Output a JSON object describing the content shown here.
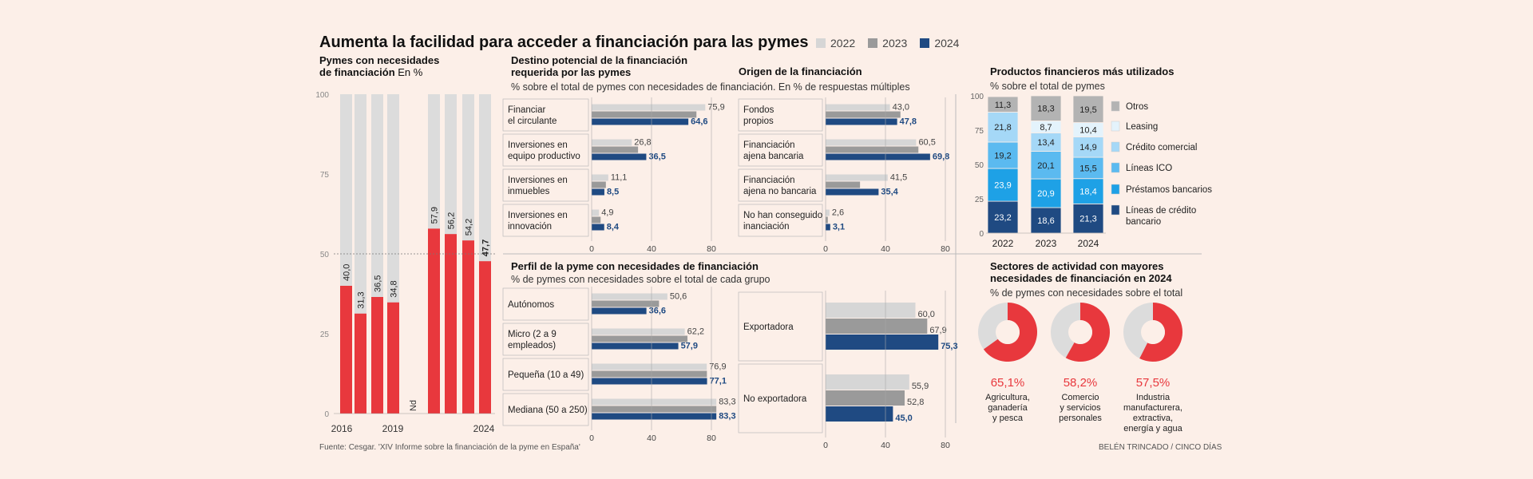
{
  "title": "Aumenta la facilidad para acceder a financiación para las pymes",
  "legend": [
    {
      "label": "2022",
      "color": "#d6d6d6"
    },
    {
      "label": "2023",
      "color": "#9a9a9a"
    },
    {
      "label": "2024",
      "color": "#1f4a82"
    }
  ],
  "colors": {
    "red": "#e8383d",
    "gray_bg": "#dcdcdc",
    "c2022": "#d6d6d6",
    "c2023": "#9a9a9a",
    "c2024": "#1f4a82"
  },
  "source": "Fuente: Cesgar. 'XIV Informe sobre la financiación de la pyme en España'",
  "credit": "BELÉN TRINCADO / CINCO DÍAS",
  "chart_data": [
    {
      "id": "pymes",
      "type": "bar",
      "title": "Pymes con necesidades",
      "title2": "de financiación",
      "unit": "En %",
      "ylim": [
        0,
        100
      ],
      "yticks": [
        "0",
        "25",
        "50",
        "75",
        "100"
      ],
      "categories": [
        "2016",
        "2017",
        "2018",
        "2019",
        "2020",
        "2021",
        "2022",
        "2023",
        "2024"
      ],
      "values": [
        40.0,
        31.3,
        36.5,
        34.8,
        null,
        57.9,
        56.2,
        54.2,
        47.7
      ],
      "labels": [
        "40,0",
        "31,3",
        "36,5",
        "34,8",
        "",
        "57,9",
        "56,2",
        "54,2",
        "47,7"
      ],
      "nd_label": "Nd",
      "xlabels": [
        "2016",
        "2019",
        "2024"
      ]
    },
    {
      "id": "destino",
      "type": "bar",
      "title": "Destino potencial de la financiación",
      "title2": "requerida por las pymes",
      "subtitle": "% sobre el total de pymes con necesidades de financiación. En % de respuestas múltiples",
      "xlim": [
        0,
        80
      ],
      "xticks": [
        "0",
        "40",
        "80"
      ],
      "rows": [
        {
          "label": [
            "Financiar",
            "el circulante"
          ],
          "values": [
            75.9,
            70.0,
            64.6
          ],
          "labels": [
            "75,9",
            "",
            "64,6"
          ]
        },
        {
          "label": [
            "Inversiones en",
            "equipo productivo"
          ],
          "values": [
            26.8,
            31.0,
            36.5
          ],
          "labels": [
            "26,8",
            "",
            "36,5"
          ]
        },
        {
          "label": [
            "Inversiones en",
            "inmuebles"
          ],
          "values": [
            11.1,
            9.5,
            8.5
          ],
          "labels": [
            "11,1",
            "",
            "8,5"
          ]
        },
        {
          "label": [
            "Inversiones en",
            "innovación"
          ],
          "values": [
            4.9,
            6.0,
            8.4
          ],
          "labels": [
            "4,9",
            "",
            "8,4"
          ]
        }
      ]
    },
    {
      "id": "origen",
      "type": "bar",
      "title": "Origen de la financiación",
      "xlim": [
        0,
        80
      ],
      "xticks": [
        "0",
        "40",
        "80"
      ],
      "rows": [
        {
          "label": [
            "Fondos",
            "propios"
          ],
          "values": [
            43.0,
            50.0,
            47.8
          ],
          "labels": [
            "43,0",
            "",
            "47,8"
          ]
        },
        {
          "label": [
            "Financiación",
            "ajena bancaria"
          ],
          "values": [
            60.5,
            62.0,
            69.8
          ],
          "labels": [
            "60,5",
            "",
            "69,8"
          ]
        },
        {
          "label": [
            "Financiación",
            "ajena no bancaria"
          ],
          "values": [
            41.5,
            23.0,
            35.4
          ],
          "labels": [
            "41,5",
            "",
            "35,4"
          ]
        },
        {
          "label": [
            "No han conseguido",
            "inanciación"
          ],
          "values": [
            2.6,
            1.5,
            3.1
          ],
          "labels": [
            "2,6",
            "",
            "3,1"
          ]
        }
      ]
    },
    {
      "id": "productos",
      "type": "bar",
      "stacked": true,
      "title": "Productos financieros más utilizados",
      "subtitle": "% sobre el total de pymes",
      "ylim": [
        0,
        100
      ],
      "yticks": [
        "0",
        "25",
        "50",
        "75",
        "100"
      ],
      "categories": [
        "2022",
        "2023",
        "2024"
      ],
      "series": [
        {
          "name": "Líneas de crédito bancario",
          "color": "#1f4a82",
          "values": [
            23.2,
            18.6,
            21.3
          ],
          "labels": [
            "23,2",
            "18,6",
            "21,3"
          ]
        },
        {
          "name": "Préstamos bancarios",
          "color": "#1ea1e6",
          "values": [
            23.9,
            20.9,
            18.4
          ],
          "labels": [
            "23,9",
            "20,9",
            "18,4"
          ]
        },
        {
          "name": "Líneas ICO",
          "color": "#5bbaf0",
          "values": [
            19.2,
            20.1,
            15.5
          ],
          "labels": [
            "19,2",
            "20,1",
            "15,5"
          ]
        },
        {
          "name": "Crédito comercial",
          "color": "#a5d8f7",
          "values": [
            21.8,
            13.4,
            14.9
          ],
          "labels": [
            "21,8",
            "13,4",
            "14,9"
          ]
        },
        {
          "name": "Leasing",
          "color": "#e4f3fc",
          "values": [
            0,
            8.7,
            10.4
          ],
          "labels": [
            "",
            "8,7",
            "10,4"
          ]
        },
        {
          "name": "Otros",
          "color": "#b3b3b3",
          "values": [
            11.3,
            18.3,
            19.5
          ],
          "labels": [
            "11,3",
            "18,3",
            "19,5"
          ]
        }
      ]
    },
    {
      "id": "perfil",
      "type": "bar",
      "title": "Perfil de la pyme con necesidades de financiación",
      "subtitle": "% de pymes con necesidades sobre el total de cada grupo",
      "xlim": [
        0,
        80
      ],
      "xticks": [
        "0",
        "40",
        "80"
      ],
      "rows": [
        {
          "label": [
            "Autónomos"
          ],
          "values": [
            50.6,
            45.0,
            36.6
          ],
          "labels": [
            "50,6",
            "",
            "36,6"
          ]
        },
        {
          "label": [
            "Micro (2 a 9",
            "empleados)"
          ],
          "values": [
            62.2,
            64.0,
            57.9
          ],
          "labels": [
            "62,2",
            "",
            "57,9"
          ]
        },
        {
          "label": [
            "Pequeña (10 a 49)"
          ],
          "values": [
            76.9,
            77.0,
            77.1
          ],
          "labels": [
            "76,9",
            "",
            "77,1"
          ]
        },
        {
          "label": [
            "Mediana (50 a 250)"
          ],
          "values": [
            83.3,
            83.3,
            83.3
          ],
          "labels": [
            "83,3",
            "",
            "83,3"
          ]
        }
      ]
    },
    {
      "id": "exporta",
      "type": "bar",
      "xlim": [
        0,
        80
      ],
      "xticks": [
        "0",
        "40",
        "80"
      ],
      "rows": [
        {
          "label": [
            "Exportadora"
          ],
          "values": [
            60.0,
            67.9,
            75.3
          ],
          "labels": [
            "60,0",
            "67,9",
            "75,3"
          ]
        },
        {
          "label": [
            "No exportadora"
          ],
          "values": [
            55.9,
            52.8,
            45.0
          ],
          "labels": [
            "55,9",
            "52,8",
            "45,0"
          ]
        }
      ]
    },
    {
      "id": "sectores",
      "type": "pie",
      "title": "Sectores de actividad con mayores",
      "title2": "necesidades de financiación en 2024",
      "subtitle": "% de pymes con necesidades sobre el total",
      "items": [
        {
          "value": 65.1,
          "label": "65,1%",
          "name": [
            "Agricultura,",
            "ganadería",
            "y pesca"
          ]
        },
        {
          "value": 58.2,
          "label": "58,2%",
          "name": [
            "Comercio",
            "y servicios",
            "personales"
          ]
        },
        {
          "value": 57.5,
          "label": "57,5%",
          "name": [
            "Industria",
            "manufacturera,",
            "extractiva,",
            "energía y agua"
          ]
        }
      ]
    }
  ]
}
